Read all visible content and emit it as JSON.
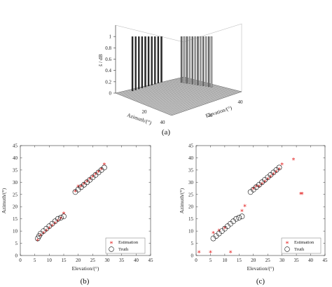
{
  "chart_data": [
    {
      "panel": "(a)",
      "type": "bar3d",
      "zlabel": "ŝ / dB",
      "xlabel": "Azimuth/(°)",
      "ylabel": "Elevation/(°)",
      "z_ticks": [
        "0",
        "0.2",
        "0.4",
        "0.6",
        "0.8",
        "1"
      ],
      "x_ticks": [
        "20",
        "40"
      ],
      "y_ticks": [
        "20",
        "40"
      ],
      "zlim": [
        0,
        1.2
      ]
    },
    {
      "panel": "(b)",
      "type": "scatter",
      "xlabel": "Elevation/(°)",
      "ylabel": "Azimuth/(°)",
      "xlim": [
        0,
        45
      ],
      "ylim": [
        0,
        45
      ],
      "x_ticks": [
        0,
        5,
        10,
        15,
        20,
        25,
        30,
        35,
        40,
        45
      ],
      "y_ticks": [
        0,
        5,
        10,
        15,
        20,
        25,
        30,
        35,
        40,
        45
      ],
      "legend": [
        "Estimation",
        "Truth"
      ],
      "legend_position": "bottom-right",
      "series": [
        {
          "name": "Estimation",
          "marker": "asterisk",
          "color": "#e32020",
          "x": [
            6,
            7,
            8,
            9,
            10,
            11,
            12,
            13,
            14,
            15,
            19,
            20,
            21,
            22,
            23,
            24,
            25,
            26,
            27,
            28,
            29
          ],
          "y": [
            6,
            8,
            9,
            10,
            11,
            12,
            13,
            14,
            15,
            17,
            26,
            28,
            28,
            29,
            30,
            31,
            32,
            33,
            34,
            35,
            37
          ]
        },
        {
          "name": "Truth",
          "marker": "circle",
          "color": "#111111",
          "x": [
            6,
            6.5,
            7,
            8,
            9,
            10,
            11,
            12,
            13,
            14,
            15,
            19,
            20,
            21,
            22,
            23,
            24,
            25,
            26,
            27,
            28,
            29
          ],
          "y": [
            7,
            8,
            9,
            10,
            11,
            12,
            13,
            14,
            15,
            15.5,
            16,
            26,
            27,
            28,
            29,
            30,
            31,
            32,
            33,
            34,
            35,
            36
          ]
        }
      ]
    },
    {
      "panel": "(c)",
      "type": "scatter",
      "xlabel": "Elevation/(°)",
      "ylabel": "Azimuth/(°)",
      "xlim": [
        0,
        45
      ],
      "ylim": [
        0,
        45
      ],
      "x_ticks": [
        0,
        5,
        10,
        15,
        20,
        25,
        30,
        35,
        40,
        45
      ],
      "y_ticks": [
        0,
        5,
        10,
        15,
        20,
        25,
        30,
        35,
        40,
        45
      ],
      "legend": [
        "Estimation",
        "Truth"
      ],
      "legend_position": "bottom-right",
      "series": [
        {
          "name": "Estimation",
          "marker": "asterisk",
          "color": "#e32020",
          "x": [
            1,
            5,
            12,
            16,
            17,
            20,
            21,
            22,
            23,
            24,
            25,
            26,
            27,
            28,
            29,
            30,
            34,
            36.5,
            37,
            6,
            8,
            10
          ],
          "y": [
            1,
            1,
            1,
            18,
            20,
            27,
            28,
            28,
            29,
            30,
            31,
            32,
            33,
            34,
            35,
            37,
            39,
            25,
            25,
            9,
            10,
            11
          ]
        },
        {
          "name": "Truth",
          "marker": "circle",
          "color": "#111111",
          "x": [
            6,
            7,
            8,
            9,
            10,
            11,
            12,
            13,
            14,
            15,
            16,
            19,
            20,
            21,
            22,
            23,
            24,
            25,
            26,
            27,
            28,
            29
          ],
          "y": [
            7,
            8,
            9,
            10,
            11,
            12,
            13,
            14,
            15,
            15.5,
            16,
            26,
            27,
            28,
            29,
            30,
            31,
            32,
            33,
            34,
            35,
            36
          ]
        }
      ]
    }
  ]
}
